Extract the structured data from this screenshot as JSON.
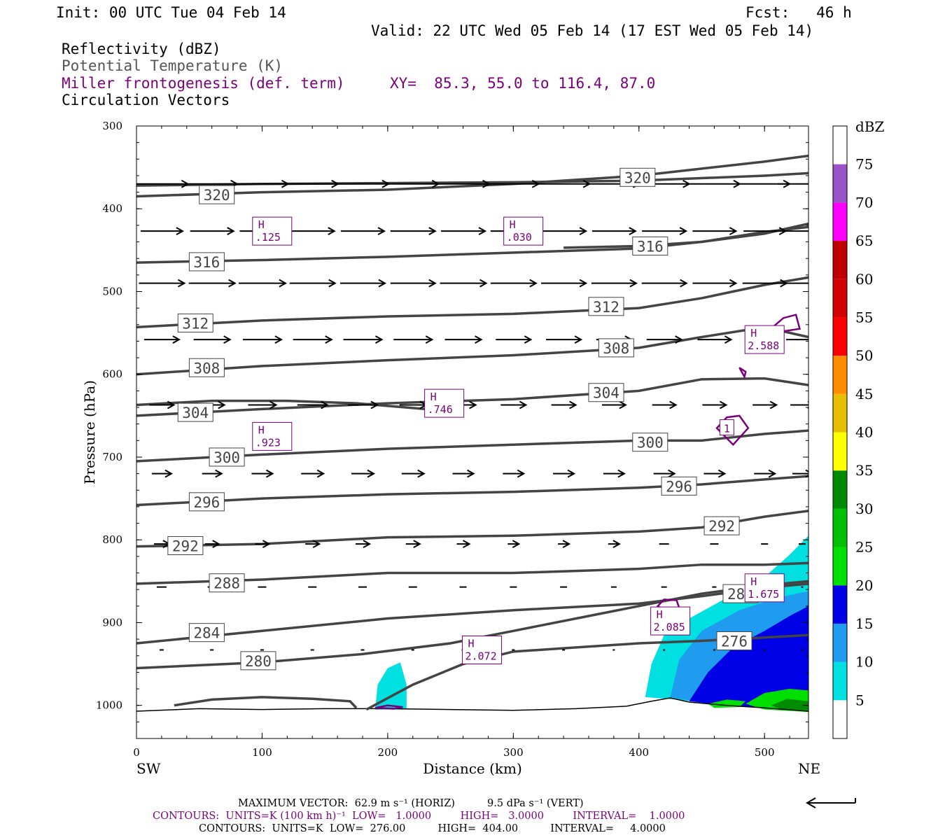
{
  "header": {
    "init": "Init: 00 UTC Tue 04 Feb 14",
    "fcst": "Fcst:   46 h",
    "valid": "Valid: 22 UTC Wed 05 Feb 14 (17 EST Wed 05 Feb 14)",
    "field1": "Reflectivity (dBZ)",
    "field2": "Potential Temperature (K)",
    "field3": "Miller frontogenesis (def. term)",
    "xy": "XY=  85.3, 55.0 to 116.4, 87.0",
    "field4": "Circulation Vectors"
  },
  "footer": {
    "max_vector": "MAXIMUM VECTOR:  62.9 m s⁻¹ (HORIZ)          9.5 dPa s⁻¹ (VERT)",
    "contours_fronto": "CONTOURS:  UNITS=K (100 km h)⁻¹  LOW=   1.0000         HIGH=   3.0000         INTERVAL=    1.0000",
    "contours_theta": "CONTOURS:  UNITS=K  LOW=  276.00          HIGH=  404.00          INTERVAL=     4.0000"
  },
  "colors": {
    "theta": "#444444",
    "fronto": "#7a007a",
    "vector": "#000000"
  },
  "chart_data": {
    "type": "cross-section",
    "xlabel": "Distance (km)",
    "ylabel": "Pressure (hPa)",
    "xlim": [
      0,
      535
    ],
    "ylim": [
      1040,
      300
    ],
    "x_ticks": [
      "0",
      "100",
      "200",
      "300",
      "400",
      "500"
    ],
    "y_ticks": [
      "300",
      "400",
      "500",
      "600",
      "700",
      "800",
      "900",
      "1000"
    ],
    "left_end_label": "SW",
    "right_end_label": "NE",
    "theta_contours": [
      {
        "label": "320",
        "x": [
          0,
          100,
          200,
          300,
          400,
          500,
          535
        ],
        "p": [
          385,
          380,
          377,
          370,
          360,
          343,
          336
        ]
      },
      {
        "label": "320",
        "x": [
          0,
          100,
          200,
          300,
          400,
          500,
          535
        ],
        "p": [
          372,
          370,
          369,
          368,
          366,
          360,
          357
        ]
      },
      {
        "label": "316",
        "x": [
          0,
          100,
          200,
          300,
          400,
          450,
          500,
          535
        ],
        "p": [
          465,
          462,
          458,
          453,
          448,
          440,
          428,
          422
        ]
      },
      {
        "label": "",
        "x": [
          340,
          400,
          450,
          500,
          535
        ],
        "p": [
          447,
          445,
          440,
          430,
          418
        ]
      },
      {
        "label": "312",
        "x": [
          0,
          100,
          200,
          300,
          400,
          450,
          500,
          535
        ],
        "p": [
          543,
          535,
          530,
          527,
          520,
          508,
          492,
          483
        ]
      },
      {
        "label": "308",
        "x": [
          0,
          100,
          200,
          300,
          400,
          450,
          500,
          535
        ],
        "p": [
          600,
          590,
          583,
          577,
          568,
          555,
          543,
          555
        ]
      },
      {
        "label": "304",
        "x": [
          0,
          100,
          200,
          300,
          400,
          450,
          500,
          535
        ],
        "p": [
          650,
          642,
          635,
          630,
          620,
          606,
          605,
          613
        ]
      },
      {
        "label": "",
        "x": [
          0,
          60,
          120,
          175,
          230,
          260
        ],
        "p": [
          637,
          632,
          632,
          635,
          642,
          640
        ]
      },
      {
        "label": "300",
        "x": [
          0,
          100,
          200,
          300,
          400,
          450,
          500,
          535
        ],
        "p": [
          705,
          697,
          690,
          685,
          680,
          680,
          672,
          668
        ]
      },
      {
        "label": "296",
        "x": [
          0,
          100,
          200,
          300,
          400,
          450,
          500,
          535
        ],
        "p": [
          758,
          750,
          745,
          742,
          737,
          733,
          727,
          723
        ]
      },
      {
        "label": "292",
        "x": [
          0,
          100,
          200,
          300,
          400,
          450,
          500,
          535
        ],
        "p": [
          808,
          805,
          797,
          795,
          790,
          785,
          772,
          765
        ]
      },
      {
        "label": "288",
        "x": [
          0,
          100,
          200,
          300,
          400,
          450,
          500,
          535
        ],
        "p": [
          853,
          848,
          840,
          840,
          835,
          830,
          830,
          828
        ]
      },
      {
        "label": "284",
        "x": [
          0,
          100,
          200,
          300,
          400,
          450,
          500,
          535
        ],
        "p": [
          925,
          910,
          895,
          885,
          877,
          868,
          858,
          853
        ]
      },
      {
        "label": "280",
        "x": [
          0,
          100,
          180,
          250,
          300,
          400,
          450,
          500,
          535
        ],
        "p": [
          955,
          948,
          938,
          925,
          910,
          880,
          865,
          855,
          850
        ]
      },
      {
        "label": "276",
        "x": [
          183,
          220,
          260,
          300,
          350,
          400,
          450,
          500,
          535
        ],
        "p": [
          1005,
          975,
          950,
          935,
          930,
          925,
          922,
          918,
          915
        ]
      },
      {
        "label": "",
        "x": [
          30,
          60,
          100,
          140,
          170,
          175
        ],
        "p": [
          1000,
          993,
          990,
          992,
          995,
          1003
        ]
      }
    ],
    "wind_vectors": {
      "levels_hPa": [
        370,
        427,
        490,
        558,
        637,
        720,
        805,
        857,
        933
      ],
      "rows": [
        [
          [
            8,
            75
          ],
          [
            8,
            72
          ],
          [
            8,
            74
          ],
          [
            8,
            73
          ],
          [
            8,
            74
          ],
          [
            8,
            73
          ],
          [
            8,
            74
          ],
          [
            8,
            72
          ],
          [
            8,
            74
          ],
          [
            8,
            73
          ],
          [
            8,
            72
          ],
          [
            8,
            73
          ],
          [
            8,
            72
          ],
          [
            8,
            70
          ]
        ],
        [
          [
            8,
            60
          ],
          [
            8,
            62
          ],
          [
            8,
            64
          ],
          [
            8,
            63
          ],
          [
            8,
            62
          ],
          [
            8,
            64
          ],
          [
            8,
            63
          ],
          [
            8,
            65
          ],
          [
            8,
            64
          ],
          [
            8,
            62
          ],
          [
            8,
            63
          ],
          [
            8,
            62
          ],
          [
            8,
            60
          ],
          [
            8,
            58
          ]
        ],
        [
          [
            8,
            65
          ],
          [
            8,
            66
          ],
          [
            8,
            67
          ],
          [
            8,
            65
          ],
          [
            8,
            64
          ],
          [
            8,
            64
          ],
          [
            8,
            66
          ],
          [
            8,
            65
          ],
          [
            8,
            64
          ],
          [
            8,
            64
          ],
          [
            8,
            64
          ],
          [
            8,
            62
          ],
          [
            8,
            63
          ],
          [
            8,
            61
          ]
        ],
        [
          [
            8,
            50
          ],
          [
            8,
            52
          ],
          [
            8,
            55
          ],
          [
            8,
            55
          ],
          [
            8,
            55
          ],
          [
            8,
            55
          ],
          [
            8,
            52
          ],
          [
            8,
            50
          ],
          [
            8,
            50
          ],
          [
            8,
            50
          ],
          [
            8,
            50
          ],
          [
            8,
            48
          ],
          [
            8,
            48
          ],
          [
            8,
            46
          ]
        ],
        [
          [
            8,
            35
          ],
          [
            8,
            36
          ],
          [
            8,
            40
          ],
          [
            8,
            43
          ],
          [
            8,
            42
          ],
          [
            8,
            38
          ],
          [
            8,
            36
          ],
          [
            8,
            36
          ],
          [
            8,
            35
          ],
          [
            8,
            34
          ],
          [
            8,
            34
          ],
          [
            8,
            34
          ],
          [
            8,
            34
          ],
          [
            8,
            34
          ]
        ],
        [
          [
            8,
            28
          ],
          [
            8,
            28
          ],
          [
            8,
            30
          ],
          [
            8,
            32
          ],
          [
            8,
            32
          ],
          [
            8,
            32
          ],
          [
            8,
            30
          ],
          [
            8,
            30
          ],
          [
            8,
            30
          ],
          [
            8,
            30
          ],
          [
            8,
            30
          ],
          [
            8,
            30
          ],
          [
            8,
            30
          ],
          [
            8,
            28
          ]
        ],
        [
          [
            8,
            22
          ],
          [
            8,
            20
          ],
          [
            8,
            20
          ],
          [
            8,
            20
          ],
          [
            8,
            20
          ],
          [
            8,
            20
          ],
          [
            8,
            18
          ],
          [
            8,
            16
          ],
          [
            8,
            16
          ],
          [
            8,
            16
          ],
          [
            8,
            14
          ],
          [
            8,
            12
          ],
          [
            8,
            10
          ],
          [
            8,
            10
          ]
        ],
        [
          [
            8,
            14
          ],
          [
            8,
            12
          ],
          [
            8,
            12
          ],
          [
            8,
            12
          ],
          [
            8,
            12
          ],
          [
            8,
            12
          ],
          [
            8,
            10
          ],
          [
            8,
            10
          ],
          [
            8,
            10
          ],
          [
            8,
            8
          ],
          [
            8,
            8
          ],
          [
            8,
            6
          ],
          [
            8,
            4
          ],
          [
            8,
            3
          ]
        ],
        [
          [
            8,
            6
          ],
          [
            8,
            5
          ],
          [
            8,
            5
          ],
          [
            8,
            5
          ],
          [
            8,
            5
          ],
          [
            8,
            4
          ],
          [
            8,
            4
          ],
          [
            8,
            4
          ],
          [
            8,
            4
          ],
          [
            8,
            3
          ],
          [
            8,
            3
          ],
          [
            8,
            3
          ],
          [
            8,
            3
          ],
          [
            8,
            3
          ]
        ]
      ]
    },
    "fronto_highs": [
      {
        "id": "fronto-high-125",
        "label": "H",
        "value": ".125",
        "x": 108,
        "p": 427
      },
      {
        "id": "fronto-high-030",
        "label": "H",
        "value": ".030",
        "x": 308,
        "p": 427
      },
      {
        "id": "fronto-high-2588",
        "label": "H",
        "value": "2.588",
        "x": 500,
        "p": 558
      },
      {
        "id": "fronto-high-746",
        "label": "H",
        "value": ".746",
        "x": 245,
        "p": 635
      },
      {
        "id": "fronto-high-923",
        "label": "H",
        "value": ".923",
        "x": 108,
        "p": 675
      },
      {
        "id": "fronto-high-1675",
        "label": "H",
        "value": "1.675",
        "x": 500,
        "p": 858
      },
      {
        "id": "fronto-high-2085",
        "label": "H",
        "value": "2.085",
        "x": 425,
        "p": 898
      },
      {
        "id": "fronto-high-2072",
        "label": "H",
        "value": "2.072",
        "x": 275,
        "p": 933
      }
    ],
    "fronto_contour_labels": [
      {
        "label": "1",
        "x": 470,
        "p": 665
      }
    ],
    "colorbar": {
      "units": "dBZ",
      "ticks": [
        "5",
        "10",
        "15",
        "20",
        "25",
        "30",
        "35",
        "40",
        "45",
        "50",
        "55",
        "60",
        "65",
        "70",
        "75"
      ],
      "colors": [
        "#00e0e0",
        "#1f9cef",
        "#0000e6",
        "#00e000",
        "#00c000",
        "#008a00",
        "#ffff00",
        "#e6c000",
        "#ff8c00",
        "#ff0000",
        "#d40000",
        "#c00000",
        "#ff00ff",
        "#9955c8"
      ]
    }
  }
}
